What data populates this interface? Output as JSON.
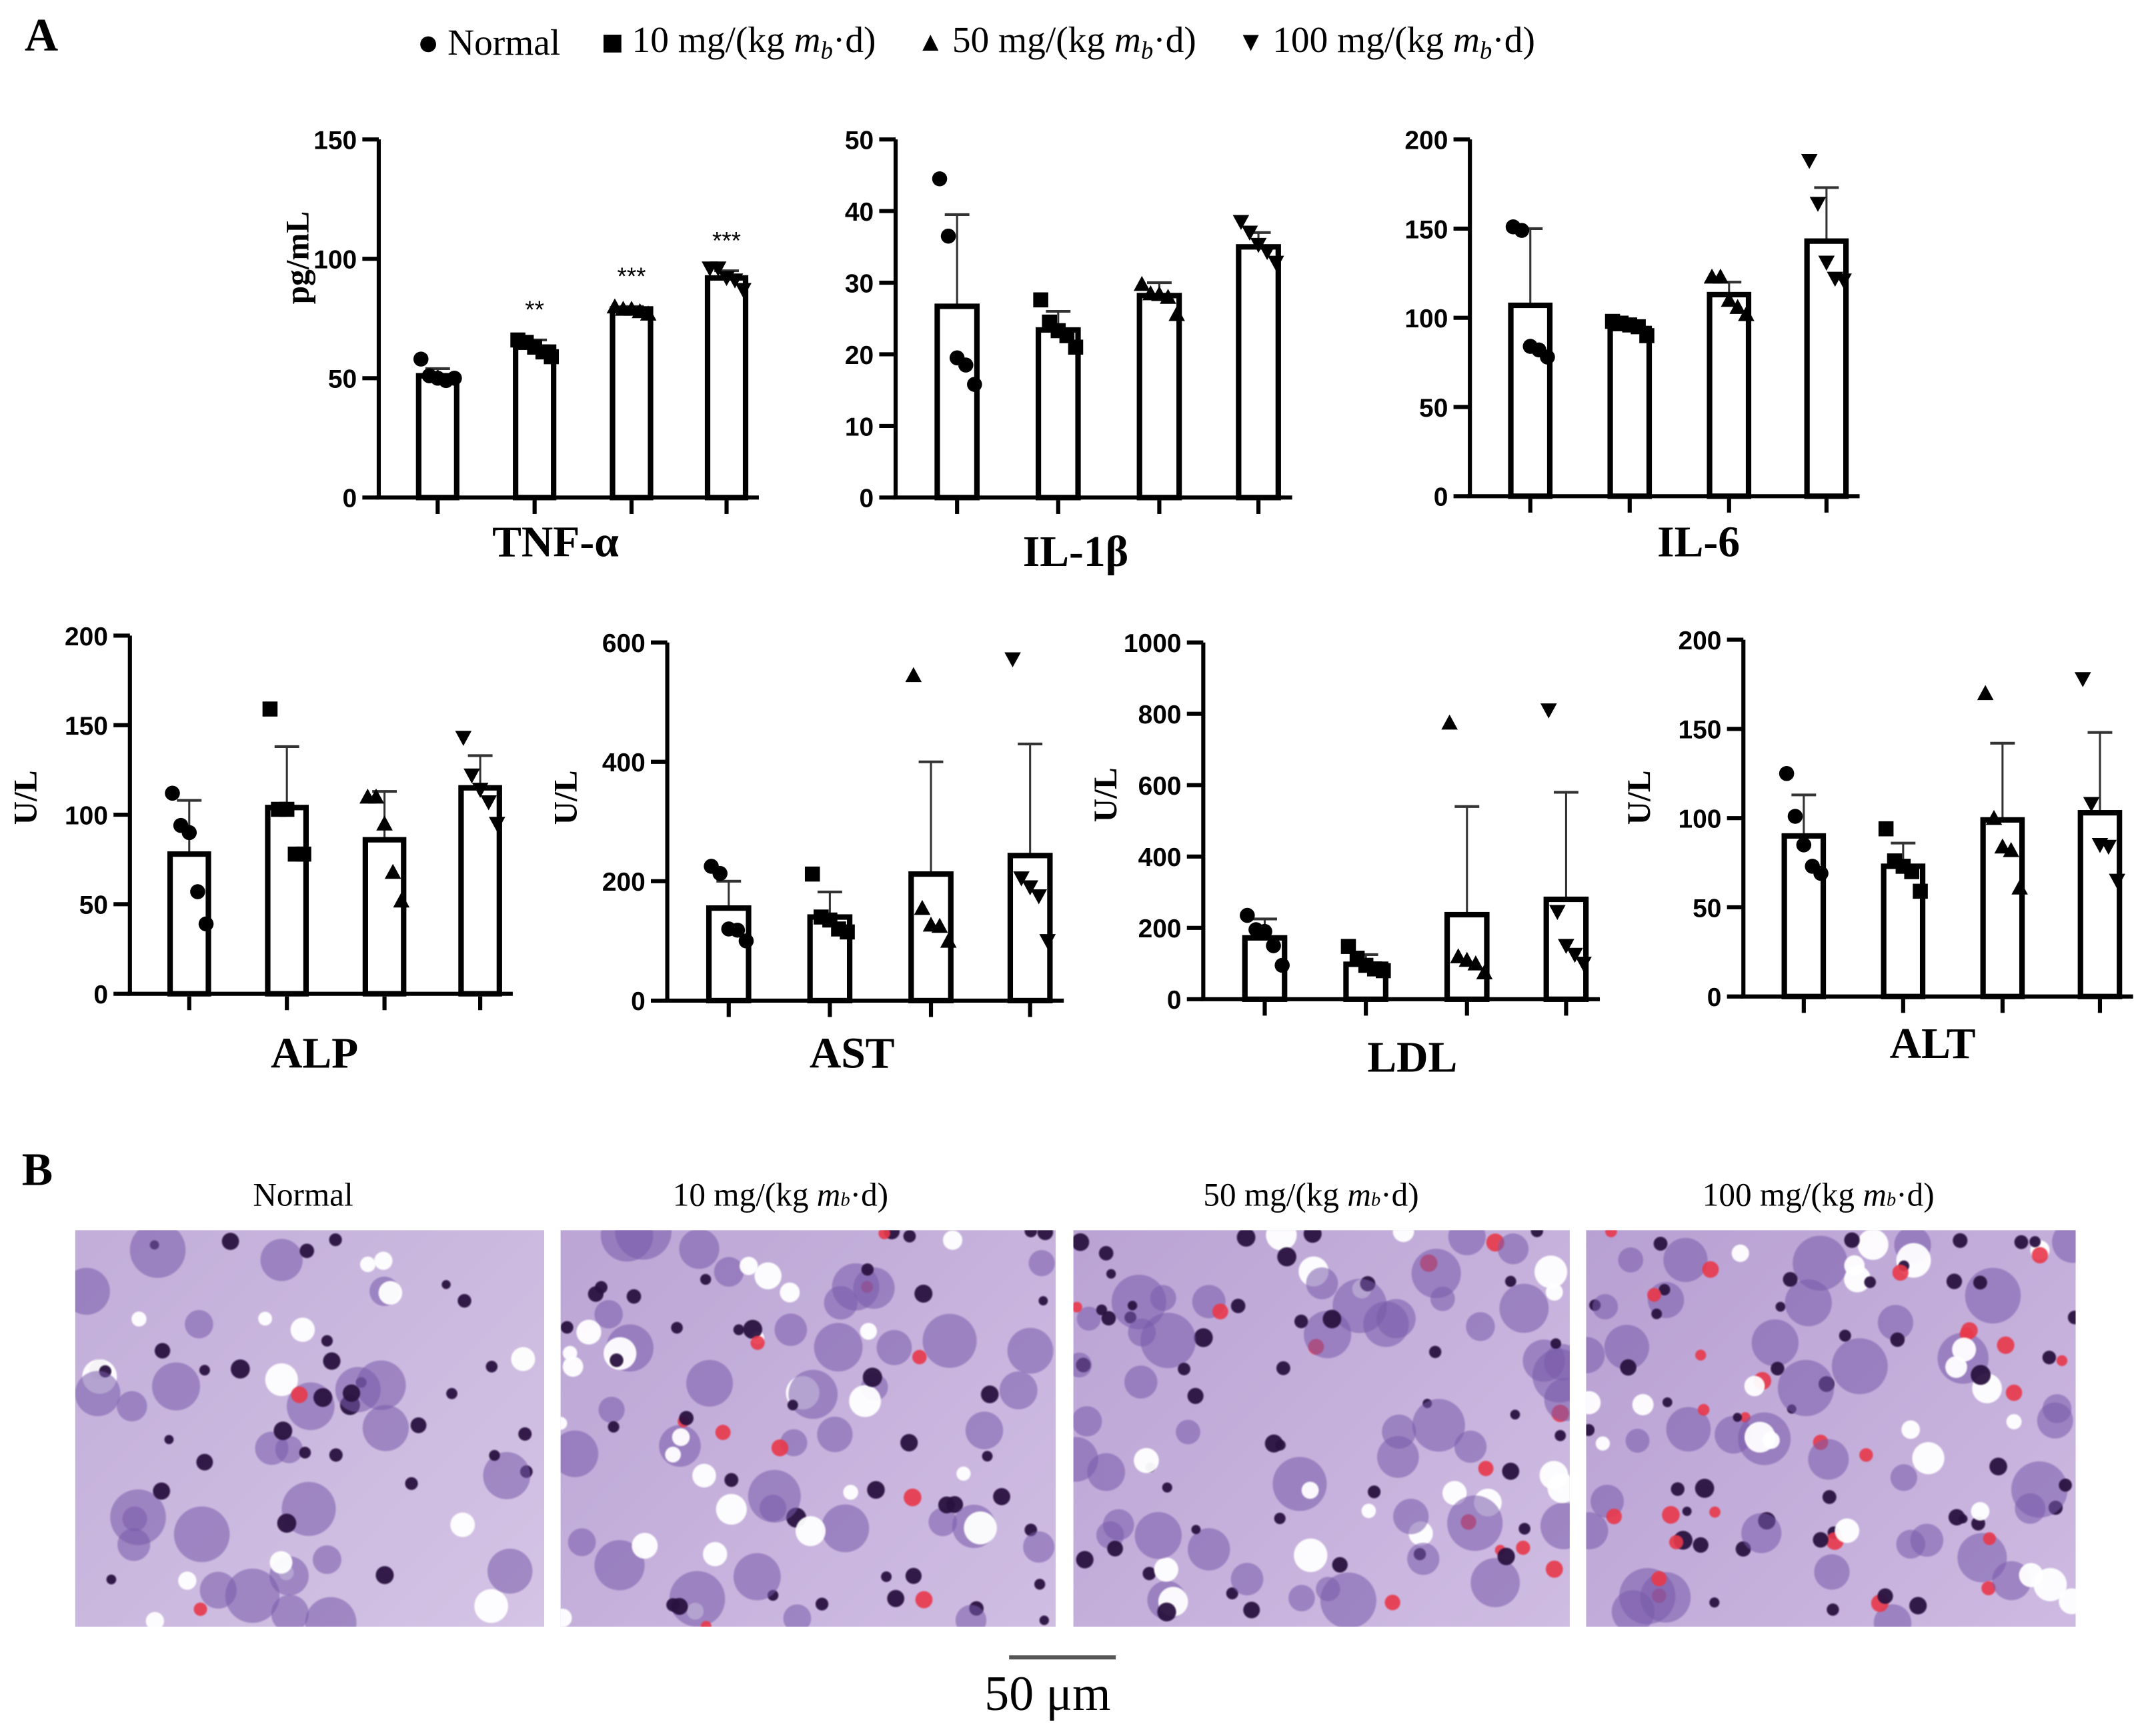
{
  "panel_labels": {
    "a": "A",
    "b": "B"
  },
  "legend": [
    {
      "marker": "circle",
      "label": "Normal"
    },
    {
      "marker": "square",
      "label_pre": "10 mg/(kg ",
      "label_italic": "m",
      "label_sub": "b",
      "label_post": "·d)"
    },
    {
      "marker": "triangle-up",
      "label_pre": "50 mg/(kg ",
      "label_italic": "m",
      "label_sub": "b",
      "label_post": "·d)"
    },
    {
      "marker": "triangle-down",
      "label_pre": "100 mg/(kg ",
      "label_italic": "m",
      "label_sub": "b",
      "label_post": "·d)"
    }
  ],
  "chart_data": [
    {
      "type": "bar",
      "title": "TNF-α",
      "ylabel": "pg/mL",
      "ylim": [
        0,
        150
      ],
      "yticks": [
        0,
        50,
        100,
        150
      ],
      "categories": [
        "Normal",
        "10 mg/(kg mb·d)",
        "50 mg/(kg mb·d)",
        "100 mg/(kg mb·d)"
      ],
      "values": [
        51,
        63,
        79,
        92
      ],
      "error_upper": [
        54,
        66,
        80,
        95
      ],
      "significance": [
        "",
        "**",
        "***",
        "***"
      ],
      "points": [
        [
          58,
          51,
          50,
          49,
          50
        ],
        [
          66,
          65,
          63,
          61,
          59
        ],
        [
          80,
          79,
          79,
          78,
          77
        ],
        [
          96,
          96,
          92,
          91,
          87
        ]
      ]
    },
    {
      "type": "bar",
      "title": "IL-1β",
      "ylabel": "",
      "ylim": [
        0,
        50
      ],
      "yticks": [
        0,
        10,
        20,
        30,
        40,
        50
      ],
      "categories": [
        "Normal",
        "10 mg/(kg mb·d)",
        "50 mg/(kg mb·d)",
        "100 mg/(kg mb·d)"
      ],
      "values": [
        26.7,
        23.4,
        28.2,
        35
      ],
      "error_upper": [
        39.5,
        26,
        30,
        37
      ],
      "points": [
        [
          44.5,
          36.5,
          19.5,
          18.5,
          15.8
        ],
        [
          27.6,
          24.5,
          23.3,
          22.6,
          21
        ],
        [
          29.8,
          28.5,
          28.4,
          28,
          25.6
        ],
        [
          38.5,
          37,
          35.3,
          34.3,
          32.8
        ]
      ]
    },
    {
      "type": "bar",
      "title": "IL-6",
      "ylabel": "",
      "ylim": [
        0,
        200
      ],
      "yticks": [
        0,
        50,
        100,
        150,
        200
      ],
      "categories": [
        "Normal",
        "10 mg/(kg mb·d)",
        "50 mg/(kg mb·d)",
        "100 mg/(kg mb·d)"
      ],
      "values": [
        107,
        94,
        113,
        143
      ],
      "error_upper": [
        150,
        97,
        120,
        173
      ],
      "points": [
        [
          151,
          149,
          84,
          82,
          78
        ],
        [
          98,
          97,
          96,
          95,
          90
        ],
        [
          123,
          123,
          110,
          106,
          102
        ],
        [
          188,
          164,
          131,
          122,
          121
        ]
      ]
    },
    {
      "type": "bar",
      "title": "ALP",
      "ylabel": "U/L",
      "ylim": [
        0,
        200
      ],
      "yticks": [
        0,
        50,
        100,
        150,
        200
      ],
      "categories": [
        "Normal",
        "10 mg/(kg mb·d)",
        "50 mg/(kg mb·d)",
        "100 mg/(kg mb·d)"
      ],
      "values": [
        78,
        104,
        86,
        115
      ],
      "error_upper": [
        108,
        138,
        113,
        133
      ],
      "points": [
        [
          112,
          94,
          90,
          57,
          39
        ],
        [
          159,
          103,
          103,
          78,
          78
        ],
        [
          110,
          110,
          95,
          68,
          52
        ],
        [
          143,
          122,
          114,
          107,
          95
        ]
      ]
    },
    {
      "type": "bar",
      "title": "AST",
      "ylabel": "U/L",
      "ylim": [
        0,
        600
      ],
      "yticks": [
        0,
        200,
        400,
        600
      ],
      "categories": [
        "Normal",
        "10 mg/(kg mb·d)",
        "50 mg/(kg mb·d)",
        "100 mg/(kg mb·d)"
      ],
      "values": [
        155,
        140,
        212,
        243
      ],
      "error_upper": [
        200,
        182,
        400,
        430
      ],
      "points": [
        [
          225,
          213,
          120,
          118,
          100
        ],
        [
          212,
          140,
          135,
          120,
          115
        ],
        [
          545,
          155,
          127,
          125,
          100
        ],
        [
          572,
          205,
          190,
          175,
          100
        ]
      ]
    },
    {
      "type": "bar",
      "title": "LDL",
      "ylabel": "U/L",
      "ylim": [
        0,
        1000
      ],
      "yticks": [
        0,
        200,
        400,
        600,
        800,
        1000
      ],
      "categories": [
        "Normal",
        "10 mg/(kg mb·d)",
        "50 mg/(kg mb·d)",
        "100 mg/(kg mb·d)"
      ],
      "values": [
        172,
        98,
        237,
        280
      ],
      "error_upper": [
        225,
        125,
        540,
        580
      ],
      "points": [
        [
          235,
          195,
          190,
          150,
          95
        ],
        [
          148,
          115,
          95,
          85,
          80
        ],
        [
          775,
          120,
          110,
          100,
          75
        ],
        [
          810,
          245,
          150,
          125,
          100
        ]
      ]
    },
    {
      "type": "bar",
      "title": "ALT",
      "ylabel": "U/L",
      "ylim": [
        0,
        200
      ],
      "yticks": [
        0,
        50,
        100,
        150,
        200
      ],
      "categories": [
        "Normal",
        "10 mg/(kg mb·d)",
        "50 mg/(kg mb·d)",
        "100 mg/(kg mb·d)"
      ],
      "values": [
        90,
        73,
        99,
        103
      ],
      "error_upper": [
        113,
        86,
        142,
        148
      ],
      "points": [
        [
          125,
          101,
          85,
          73,
          69
        ],
        [
          94,
          76,
          73,
          70,
          59
        ],
        [
          170,
          100,
          84,
          82,
          61
        ],
        [
          178,
          108,
          85,
          84,
          65
        ]
      ]
    }
  ],
  "histology": {
    "labels": [
      {
        "pre": "Normal",
        "italic": "",
        "sub": "",
        "post": ""
      },
      {
        "pre": "10 mg/(kg ",
        "italic": "m",
        "sub": "b",
        "post": "·d)"
      },
      {
        "pre": "50 mg/(kg ",
        "italic": "m",
        "sub": "b",
        "post": "·d)"
      },
      {
        "pre": "100 mg/(kg ",
        "italic": "m",
        "sub": "b",
        "post": "·d)"
      }
    ],
    "scale_bar": "50 μm"
  },
  "colors": {
    "stain_purple": "#8a6bb0",
    "nucleus": "#2a1240",
    "eosin_red": "#e8384a",
    "background": "#ffffff"
  }
}
